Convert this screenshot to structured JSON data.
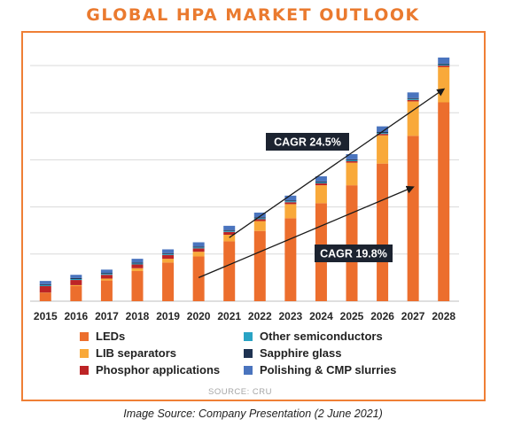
{
  "title": "GLOBAL HPA MARKET OUTLOOK",
  "source": "SOURCE: CRU",
  "caption": "Image Source: Company Presentation (2 June 2021)",
  "colors": {
    "title": "#ea7a2f",
    "frame": "#ef7f35",
    "leds": "#ec6e2d",
    "lib_separators": "#f9a93a",
    "phosphor": "#bd2426",
    "other_semiconductors": "#29a3c4",
    "sapphire_glass": "#1f3352",
    "polishing": "#4a74be",
    "grid": "#d9d9d9",
    "annotation_bg": "#1c2330"
  },
  "chart_data": {
    "type": "bar",
    "stacked": true,
    "categories": [
      "2015",
      "2016",
      "2017",
      "2018",
      "2019",
      "2020",
      "2021",
      "2022",
      "2023",
      "2024",
      "2025",
      "2026",
      "2027",
      "2028"
    ],
    "ylim": [
      0,
      5.5
    ],
    "y_gridlines": [
      1,
      2,
      3,
      4,
      5
    ],
    "y_tick_labels_shown": false,
    "series": [
      {
        "name": "LEDs",
        "color_key": "leds",
        "values": [
          0.17,
          0.32,
          0.44,
          0.64,
          0.82,
          0.95,
          1.27,
          1.49,
          1.76,
          2.08,
          2.46,
          2.92,
          3.51,
          4.22
        ]
      },
      {
        "name": "LIB separators",
        "color_key": "lib_separators",
        "values": [
          0.01,
          0.02,
          0.04,
          0.06,
          0.08,
          0.1,
          0.14,
          0.21,
          0.3,
          0.38,
          0.48,
          0.6,
          0.73,
          0.75
        ]
      },
      {
        "name": "Phosphor applications",
        "color_key": "phosphor",
        "values": [
          0.14,
          0.11,
          0.08,
          0.08,
          0.08,
          0.07,
          0.06,
          0.04,
          0.04,
          0.04,
          0.03,
          0.03,
          0.03,
          0.03
        ]
      },
      {
        "name": "Other semiconductors",
        "color_key": "other_semiconductors",
        "values": [
          0.02,
          0.02,
          0.02,
          0.02,
          0.02,
          0.02,
          0.02,
          0.02,
          0.02,
          0.02,
          0.02,
          0.02,
          0.02,
          0.02
        ]
      },
      {
        "name": "Sapphire glass",
        "color_key": "sapphire_glass",
        "values": [
          0.02,
          0.02,
          0.02,
          0.02,
          0.02,
          0.02,
          0.02,
          0.02,
          0.02,
          0.02,
          0.02,
          0.02,
          0.02,
          0.02
        ]
      },
      {
        "name": "Polishing & CMP slurries",
        "color_key": "polishing",
        "values": [
          0.07,
          0.07,
          0.07,
          0.08,
          0.08,
          0.09,
          0.09,
          0.1,
          0.1,
          0.11,
          0.11,
          0.12,
          0.12,
          0.13
        ]
      }
    ],
    "annotations": [
      {
        "text": "CAGR 24.5%",
        "arrow_from": [
          "2021",
          1.35
        ],
        "arrow_to": [
          "2028",
          4.5
        ]
      },
      {
        "text": "CAGR 19.8%",
        "arrow_from": [
          "2020",
          0.5
        ],
        "arrow_to": [
          "2027",
          2.42
        ]
      }
    ],
    "legend": {
      "placement": "bottom",
      "columns": [
        [
          "LEDs",
          "LIB separators",
          "Phosphor applications"
        ],
        [
          "Other semiconductors",
          "Sapphire glass",
          "Polishing & CMP slurries"
        ]
      ]
    },
    "grid": true
  }
}
